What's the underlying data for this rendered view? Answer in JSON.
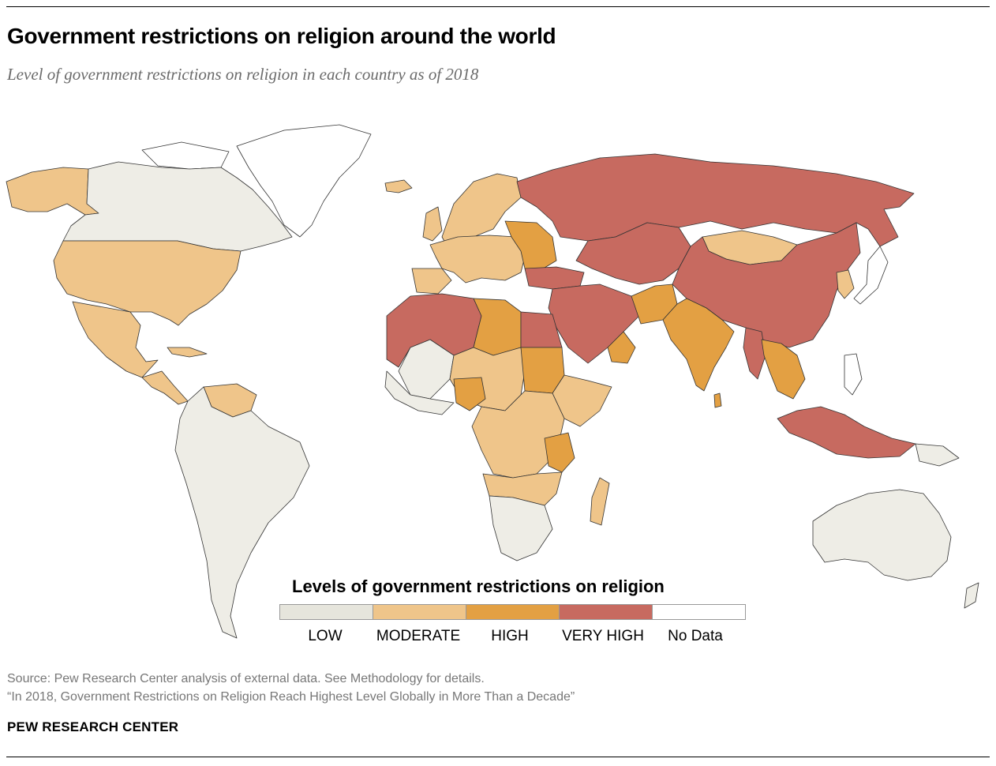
{
  "header": {
    "title": "Government restrictions on religion around the world",
    "subtitle": "Level of government restrictions on religion in each country as of 2018"
  },
  "legend": {
    "title": "Levels of government restrictions on religion",
    "items": [
      {
        "label": "LOW",
        "color": "#e6e5dc"
      },
      {
        "label": "MODERATE",
        "color": "#efc58a"
      },
      {
        "label": "HIGH",
        "color": "#e3a043"
      },
      {
        "label": "VERY HIGH",
        "color": "#c76a60"
      },
      {
        "label": "No Data",
        "color": "#ffffff"
      }
    ]
  },
  "footer": {
    "source": "Source: Pew Research Center analysis of external data. See Methodology for details.",
    "report": "“In 2018, Government Restrictions on Religion Reach Highest Level Globally in More Than a Decade”",
    "org": "PEW RESEARCH CENTER"
  }
}
